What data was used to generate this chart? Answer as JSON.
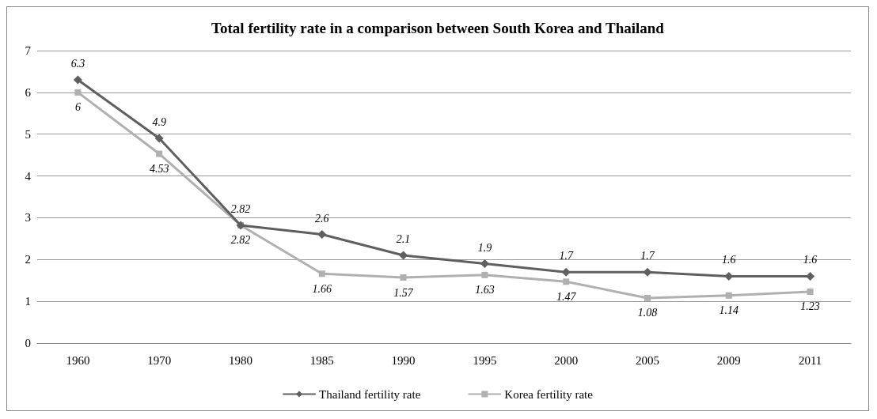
{
  "chart_data": {
    "type": "line",
    "title": "Total fertility rate in a comparison between South Korea and Thailand",
    "categories": [
      "1960",
      "1970",
      "1980",
      "1985",
      "1990",
      "1995",
      "2000",
      "2005",
      "2009",
      "2011"
    ],
    "series": [
      {
        "name": "Thailand fertility rate",
        "color": "#5f5f5f",
        "marker": "diamond",
        "values": [
          6.3,
          4.9,
          2.82,
          2.6,
          2.1,
          1.9,
          1.7,
          1.7,
          1.6,
          1.6
        ]
      },
      {
        "name": "Korea fertility rate",
        "color": "#b0b0b0",
        "marker": "square",
        "values": [
          6,
          4.53,
          2.82,
          1.66,
          1.57,
          1.63,
          1.47,
          1.08,
          1.14,
          1.23
        ]
      }
    ],
    "ylim": [
      0,
      7
    ],
    "yticks": [
      0,
      1,
      2,
      3,
      4,
      5,
      6,
      7
    ],
    "grid": "y",
    "legend": "bottom",
    "data_labels": true,
    "line_style": "solid"
  }
}
